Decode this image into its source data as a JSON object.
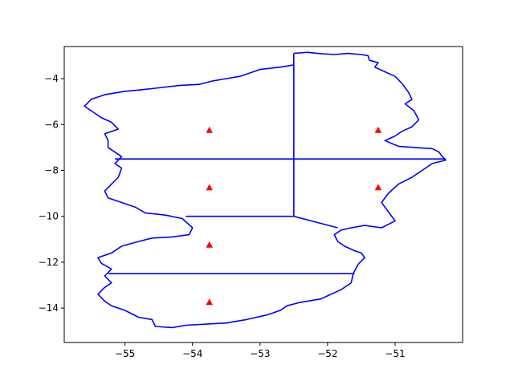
{
  "chart_data": {
    "type": "map",
    "title": "",
    "xlabel": "",
    "ylabel": "",
    "xlim": [
      -55.9,
      -50.0
    ],
    "ylim": [
      -15.5,
      -2.6
    ],
    "grid": false,
    "x_ticks": [
      -55,
      -54,
      -53,
      -52,
      -51
    ],
    "y_ticks": [
      -4,
      -6,
      -8,
      -10,
      -12,
      -14
    ],
    "x_tick_labels": [
      "−55",
      "−54",
      "−53",
      "−52",
      "−51"
    ],
    "y_tick_labels": [
      "−4",
      "−6",
      "−8",
      "−10",
      "−12",
      "−14"
    ],
    "boundary_color": "#0000ff",
    "marker_color": "#ff0000",
    "boundary": [
      [
        -52.5,
        -2.9
      ],
      [
        -52.3,
        -2.85
      ],
      [
        -52.15,
        -2.9
      ],
      [
        -51.9,
        -2.95
      ],
      [
        -51.7,
        -2.9
      ],
      [
        -51.5,
        -2.95
      ],
      [
        -51.4,
        -3.0
      ],
      [
        -51.38,
        -3.2
      ],
      [
        -51.25,
        -3.3
      ],
      [
        -51.3,
        -3.5
      ],
      [
        -51.15,
        -3.7
      ],
      [
        -51.0,
        -3.9
      ],
      [
        -50.9,
        -4.2
      ],
      [
        -50.8,
        -4.6
      ],
      [
        -50.75,
        -4.9
      ],
      [
        -50.85,
        -5.1
      ],
      [
        -50.72,
        -5.4
      ],
      [
        -50.65,
        -5.8
      ],
      [
        -50.75,
        -6.1
      ],
      [
        -50.9,
        -6.3
      ],
      [
        -51.0,
        -6.5
      ],
      [
        -51.15,
        -6.7
      ],
      [
        -50.95,
        -6.95
      ],
      [
        -50.7,
        -7.0
      ],
      [
        -50.45,
        -7.05
      ],
      [
        -50.35,
        -7.2
      ],
      [
        -50.3,
        -7.4
      ],
      [
        -50.25,
        -7.55
      ],
      [
        -50.45,
        -7.7
      ],
      [
        -50.55,
        -7.9
      ],
      [
        -50.75,
        -8.3
      ],
      [
        -50.95,
        -8.6
      ],
      [
        -51.1,
        -9.0
      ],
      [
        -51.2,
        -9.4
      ],
      [
        -51.1,
        -9.8
      ],
      [
        -51.0,
        -10.2
      ],
      [
        -51.2,
        -10.5
      ],
      [
        -51.45,
        -10.4
      ],
      [
        -51.65,
        -10.5
      ],
      [
        -51.8,
        -10.6
      ],
      [
        -51.9,
        -10.8
      ],
      [
        -51.85,
        -11.1
      ],
      [
        -51.75,
        -11.3
      ],
      [
        -51.6,
        -11.5
      ],
      [
        -51.5,
        -11.6
      ],
      [
        -51.45,
        -11.8
      ],
      [
        -51.55,
        -12.1
      ],
      [
        -51.62,
        -12.5
      ],
      [
        -51.65,
        -12.9
      ],
      [
        -51.8,
        -13.2
      ],
      [
        -51.95,
        -13.4
      ],
      [
        -52.1,
        -13.6
      ],
      [
        -52.4,
        -13.75
      ],
      [
        -52.6,
        -13.9
      ],
      [
        -52.7,
        -14.1
      ],
      [
        -52.9,
        -14.3
      ],
      [
        -53.2,
        -14.5
      ],
      [
        -53.5,
        -14.65
      ],
      [
        -53.8,
        -14.7
      ],
      [
        -54.1,
        -14.75
      ],
      [
        -54.3,
        -14.85
      ],
      [
        -54.55,
        -14.8
      ],
      [
        -54.6,
        -14.5
      ],
      [
        -54.8,
        -14.4
      ],
      [
        -55.0,
        -14.1
      ],
      [
        -55.2,
        -13.9
      ],
      [
        -55.3,
        -13.7
      ],
      [
        -55.4,
        -13.4
      ],
      [
        -55.3,
        -13.1
      ],
      [
        -55.2,
        -12.9
      ],
      [
        -55.3,
        -12.6
      ],
      [
        -55.2,
        -12.3
      ],
      [
        -55.35,
        -12.05
      ],
      [
        -55.4,
        -11.8
      ],
      [
        -55.2,
        -11.6
      ],
      [
        -55.05,
        -11.3
      ],
      [
        -54.8,
        -11.1
      ],
      [
        -54.6,
        -10.95
      ],
      [
        -54.3,
        -10.9
      ],
      [
        -54.05,
        -10.8
      ],
      [
        -54.0,
        -10.5
      ],
      [
        -54.15,
        -10.1
      ],
      [
        -54.4,
        -9.95
      ],
      [
        -54.7,
        -9.85
      ],
      [
        -54.85,
        -9.6
      ],
      [
        -55.05,
        -9.4
      ],
      [
        -55.25,
        -9.2
      ],
      [
        -55.3,
        -8.9
      ],
      [
        -55.2,
        -8.6
      ],
      [
        -55.1,
        -8.3
      ],
      [
        -55.05,
        -7.9
      ],
      [
        -55.15,
        -7.7
      ],
      [
        -55.05,
        -7.4
      ],
      [
        -55.25,
        -7.0
      ],
      [
        -55.25,
        -6.7
      ],
      [
        -55.3,
        -6.4
      ],
      [
        -55.1,
        -6.2
      ],
      [
        -55.2,
        -5.9
      ],
      [
        -55.35,
        -5.7
      ],
      [
        -55.45,
        -5.5
      ],
      [
        -55.6,
        -5.2
      ],
      [
        -55.5,
        -4.9
      ],
      [
        -55.3,
        -4.7
      ],
      [
        -55.0,
        -4.55
      ],
      [
        -54.8,
        -4.5
      ],
      [
        -54.5,
        -4.4
      ],
      [
        -54.2,
        -4.3
      ],
      [
        -53.9,
        -4.25
      ],
      [
        -53.7,
        -4.1
      ],
      [
        -53.5,
        -4.0
      ],
      [
        -53.3,
        -3.9
      ],
      [
        -53.0,
        -3.6
      ],
      [
        -52.7,
        -3.5
      ],
      [
        -52.5,
        -3.4
      ],
      [
        -52.5,
        -2.9
      ]
    ],
    "division_lines": [
      [
        [
          -52.5,
          -3.4
        ],
        [
          -52.5,
          -10.0
        ]
      ],
      [
        [
          -55.15,
          -7.5
        ],
        [
          -50.25,
          -7.5
        ]
      ],
      [
        [
          -54.1,
          -10.0
        ],
        [
          -52.5,
          -10.0
        ]
      ],
      [
        [
          -52.5,
          -10.0
        ],
        [
          -51.85,
          -10.5
        ]
      ],
      [
        [
          -55.25,
          -12.5
        ],
        [
          -51.6,
          -12.5
        ]
      ]
    ],
    "markers": [
      {
        "x": -53.75,
        "y": -6.25
      },
      {
        "x": -51.25,
        "y": -6.25
      },
      {
        "x": -53.75,
        "y": -8.75
      },
      {
        "x": -51.25,
        "y": -8.75
      },
      {
        "x": -53.75,
        "y": -11.25
      },
      {
        "x": -53.75,
        "y": -13.75
      }
    ]
  }
}
